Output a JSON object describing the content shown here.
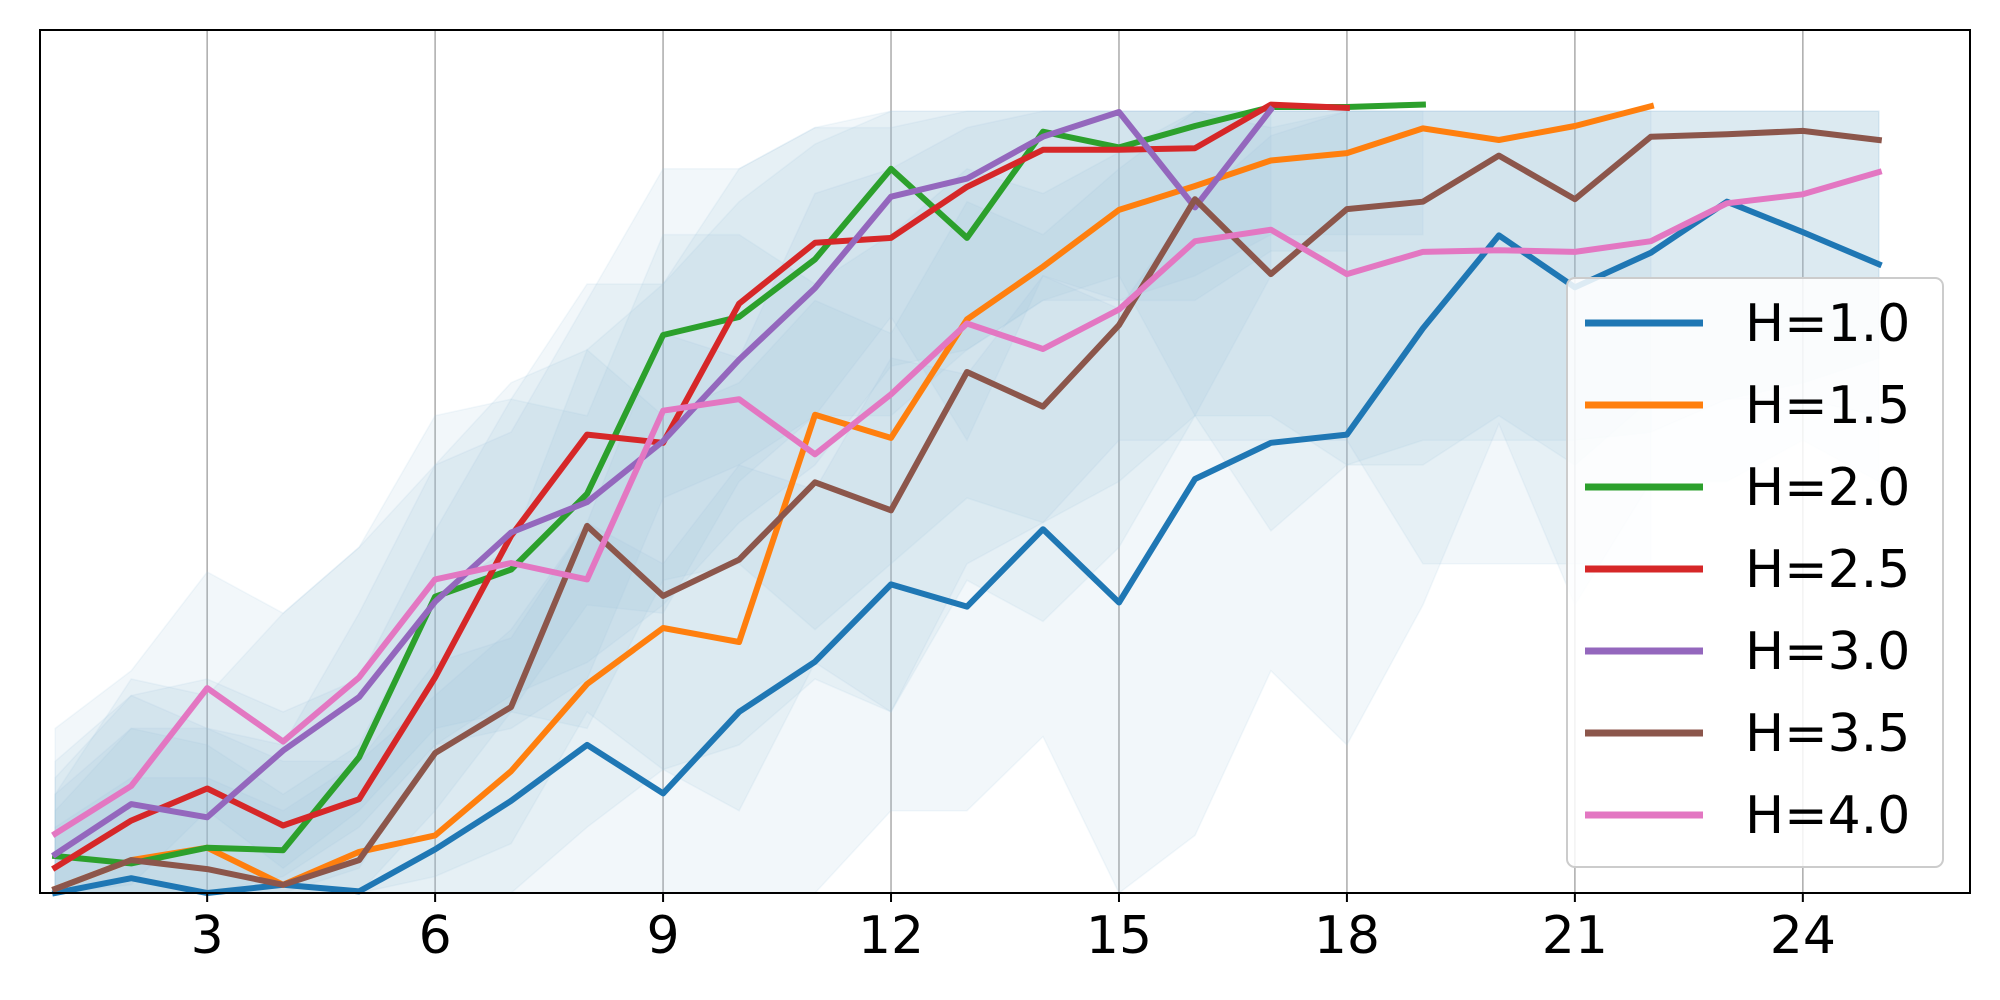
{
  "chart_data": {
    "type": "line",
    "title": "",
    "xlabel": "",
    "ylabel": "",
    "xlim": [
      0.8,
      26.2
    ],
    "ylim": [
      0,
      1.0
    ],
    "grid": "vertical",
    "legend_position": "right",
    "band_color": "#9ec3dc",
    "x_ticks": [
      {
        "value": 3,
        "label": "3"
      },
      {
        "value": 6,
        "label": "6"
      },
      {
        "value": 9,
        "label": "9"
      },
      {
        "value": 12,
        "label": "12"
      },
      {
        "value": 15,
        "label": "15"
      },
      {
        "value": 18,
        "label": "18"
      },
      {
        "value": 21,
        "label": "21"
      },
      {
        "value": 24,
        "label": "24"
      }
    ],
    "series": [
      {
        "name": "H=1.0",
        "color": "#1f77b4",
        "x": [
          1,
          2,
          3,
          4,
          5,
          6,
          7,
          8,
          9,
          10,
          11,
          12,
          13,
          14,
          15,
          16,
          17,
          18,
          19,
          20,
          21,
          22,
          23,
          24,
          25
        ],
        "values": [
          0.0,
          0.018,
          -0.002,
          0.01,
          0.002,
          0.053,
          0.112,
          0.18,
          0.121,
          0.22,
          0.281,
          0.375,
          0.348,
          0.442,
          0.353,
          0.503,
          0.547,
          0.557,
          0.686,
          0.799,
          0.736,
          0.778,
          0.84,
          0.803,
          0.764
        ],
        "lower": [
          -0.02,
          -0.02,
          -0.02,
          -0.02,
          -0.02,
          -0.02,
          -0.02,
          -0.02,
          -0.02,
          -0.02,
          -0.02,
          0.1,
          0.1,
          0.19,
          -0.02,
          0.07,
          0.27,
          0.18,
          0.35,
          0.57,
          0.35,
          0.5,
          0.5,
          0.55,
          0.5
        ],
        "upper": [
          0.12,
          0.2,
          0.2,
          0.16,
          0.16,
          0.28,
          0.31,
          0.45,
          0.4,
          0.52,
          0.49,
          0.65,
          0.63,
          0.75,
          0.71,
          0.84,
          0.92,
          0.95,
          0.95,
          0.95,
          0.95,
          0.95,
          0.95,
          0.95,
          0.95
        ]
      },
      {
        "name": "H=1.5",
        "color": "#ff7f0e",
        "x": [
          1,
          2,
          3,
          4,
          5,
          6,
          7,
          8,
          9,
          10,
          11,
          12,
          13,
          14,
          15,
          16,
          17,
          18,
          19,
          20,
          21,
          22
        ],
        "values": [
          0.005,
          0.04,
          0.055,
          0.01,
          0.05,
          0.07,
          0.148,
          0.254,
          0.322,
          0.305,
          0.581,
          0.553,
          0.697,
          0.761,
          0.83,
          0.859,
          0.89,
          0.899,
          0.929,
          0.915,
          0.932,
          0.956
        ],
        "lower": [
          -0.02,
          -0.02,
          -0.02,
          -0.02,
          -0.02,
          -0.02,
          -0.02,
          0.08,
          0.15,
          0.1,
          0.28,
          0.22,
          0.4,
          0.45,
          0.55,
          0.55,
          0.55,
          0.55,
          0.4,
          0.4,
          0.4,
          0.4
        ],
        "upper": [
          0.08,
          0.14,
          0.14,
          0.1,
          0.16,
          0.24,
          0.32,
          0.45,
          0.68,
          0.65,
          0.85,
          0.88,
          0.93,
          0.95,
          0.95,
          0.95,
          0.95,
          0.95,
          0.95,
          0.95,
          0.95,
          0.95
        ]
      },
      {
        "name": "H=2.0",
        "color": "#2ca02c",
        "x": [
          1,
          2,
          3,
          4,
          5,
          6,
          7,
          8,
          9,
          10,
          11,
          12,
          13,
          14,
          15,
          16,
          17,
          18,
          19
        ],
        "values": [
          0.045,
          0.036,
          0.055,
          0.052,
          0.165,
          0.36,
          0.393,
          0.485,
          0.678,
          0.7,
          0.77,
          0.88,
          0.796,
          0.925,
          0.906,
          0.932,
          0.955,
          0.955,
          0.958
        ],
        "lower": [
          -0.02,
          -0.02,
          -0.02,
          -0.02,
          0.03,
          0.18,
          0.2,
          0.26,
          0.48,
          0.52,
          0.58,
          0.7,
          0.55,
          0.75,
          0.72,
          0.75,
          0.8,
          0.8,
          0.8
        ],
        "upper": [
          0.16,
          0.24,
          0.2,
          0.18,
          0.34,
          0.52,
          0.56,
          0.72,
          0.88,
          0.88,
          0.93,
          0.95,
          0.95,
          0.95,
          0.95,
          0.95,
          0.95,
          0.95,
          0.95
        ]
      },
      {
        "name": "H=2.5",
        "color": "#d62728",
        "x": [
          1,
          2,
          3,
          4,
          5,
          6,
          7,
          8,
          9,
          10,
          11,
          12,
          13,
          14,
          15,
          16,
          17,
          18
        ],
        "values": [
          0.031,
          0.088,
          0.127,
          0.082,
          0.114,
          0.262,
          0.434,
          0.557,
          0.547,
          0.716,
          0.79,
          0.796,
          0.858,
          0.903,
          0.903,
          0.905,
          0.958,
          0.954
        ],
        "lower": [
          -0.02,
          -0.02,
          -0.02,
          -0.02,
          -0.02,
          0.1,
          0.22,
          0.35,
          0.34,
          0.5,
          0.58,
          0.58,
          0.66,
          0.72,
          0.72,
          0.72,
          0.78,
          0.78
        ],
        "upper": [
          0.14,
          0.24,
          0.26,
          0.22,
          0.26,
          0.44,
          0.6,
          0.74,
          0.74,
          0.88,
          0.93,
          0.93,
          0.95,
          0.95,
          0.95,
          0.95,
          0.95,
          0.95
        ]
      },
      {
        "name": "H=3.0",
        "color": "#9467bd",
        "x": [
          1,
          2,
          3,
          4,
          5,
          6,
          7,
          8,
          9,
          10,
          11,
          12,
          13,
          14,
          15,
          16,
          17
        ],
        "values": [
          0.047,
          0.108,
          0.092,
          0.173,
          0.238,
          0.354,
          0.438,
          0.475,
          0.549,
          0.648,
          0.735,
          0.846,
          0.868,
          0.919,
          0.949,
          0.833,
          0.952
        ],
        "lower": [
          -0.02,
          -0.02,
          -0.02,
          0.02,
          0.08,
          0.18,
          0.24,
          0.28,
          0.35,
          0.45,
          0.52,
          0.64,
          0.66,
          0.72,
          0.75,
          0.58,
          0.75
        ],
        "upper": [
          0.12,
          0.26,
          0.24,
          0.34,
          0.42,
          0.52,
          0.62,
          0.66,
          0.74,
          0.84,
          0.91,
          0.95,
          0.95,
          0.95,
          0.95,
          0.95,
          0.95
        ]
      },
      {
        "name": "H=3.5",
        "color": "#8c564b",
        "x": [
          1,
          2,
          3,
          4,
          5,
          6,
          7,
          8,
          9,
          10,
          11,
          12,
          13,
          14,
          15,
          16,
          17,
          18,
          19,
          20,
          21,
          22,
          23,
          24,
          25
        ],
        "values": [
          0.005,
          0.04,
          0.029,
          0.01,
          0.04,
          0.17,
          0.226,
          0.446,
          0.361,
          0.405,
          0.499,
          0.465,
          0.633,
          0.591,
          0.69,
          0.843,
          0.752,
          0.831,
          0.84,
          0.896,
          0.843,
          0.919,
          0.922,
          0.926,
          0.915
        ],
        "lower": [
          -0.02,
          -0.02,
          -0.02,
          -0.02,
          -0.02,
          0.02,
          0.06,
          0.22,
          0.15,
          0.18,
          0.26,
          0.22,
          0.38,
          0.33,
          0.42,
          0.58,
          0.44,
          0.52,
          0.52,
          0.58,
          0.52,
          0.6,
          0.6,
          0.6,
          0.58
        ],
        "upper": [
          0.1,
          0.2,
          0.18,
          0.12,
          0.18,
          0.36,
          0.42,
          0.66,
          0.58,
          0.62,
          0.72,
          0.68,
          0.84,
          0.8,
          0.88,
          0.95,
          0.93,
          0.95,
          0.95,
          0.95,
          0.95,
          0.95,
          0.95,
          0.95,
          0.95
        ]
      },
      {
        "name": "H=4.0",
        "color": "#e377c2",
        "x": [
          1,
          2,
          3,
          4,
          5,
          6,
          7,
          8,
          9,
          10,
          11,
          12,
          13,
          14,
          15,
          16,
          17,
          18,
          19,
          20,
          21,
          22,
          23,
          24,
          25
        ],
        "values": [
          0.072,
          0.13,
          0.249,
          0.184,
          0.262,
          0.381,
          0.401,
          0.381,
          0.586,
          0.6,
          0.533,
          0.606,
          0.692,
          0.661,
          0.709,
          0.792,
          0.806,
          0.752,
          0.779,
          0.781,
          0.779,
          0.792,
          0.838,
          0.849,
          0.876
        ],
        "lower": [
          -0.02,
          0.01,
          0.1,
          0.03,
          0.1,
          0.2,
          0.22,
          0.2,
          0.38,
          0.4,
          0.32,
          0.4,
          0.48,
          0.45,
          0.5,
          0.58,
          0.58,
          0.52,
          0.55,
          0.55,
          0.55,
          0.56,
          0.6,
          0.62,
          0.65
        ],
        "upper": [
          0.2,
          0.27,
          0.39,
          0.34,
          0.42,
          0.58,
          0.6,
          0.58,
          0.8,
          0.8,
          0.74,
          0.8,
          0.88,
          0.85,
          0.9,
          0.95,
          0.95,
          0.95,
          0.95,
          0.95,
          0.95,
          0.95,
          0.95,
          0.95,
          0.95
        ]
      }
    ]
  }
}
